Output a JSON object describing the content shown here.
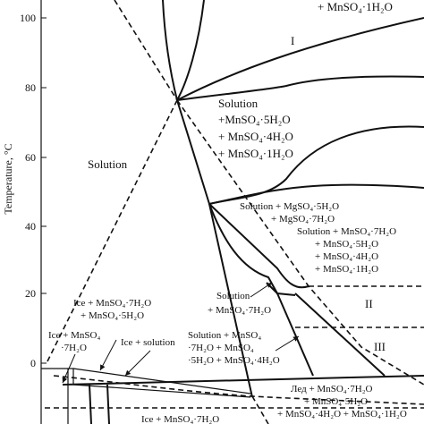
{
  "axis": {
    "ylabel": "Temperature, °C",
    "yticks": [
      "100",
      "80",
      "60",
      "40",
      "20",
      "0"
    ]
  },
  "labels": {
    "top_right": "+ MnSO₄·1H₂O",
    "region_I": "I",
    "solution_multi_1": "Solution",
    "solution_multi_2": "+MnSO₄·5H₂O",
    "solution_multi_3": "+ MnSO₄·4H₂O",
    "solution_multi_4": "+ MnSO₄·1H₂O",
    "solution_main": "Solution",
    "mg_1": "Solution + MgSO₄·5H₂O",
    "mg_2": "+ MgSO₄·7H₂O",
    "mn4_1": "Solution + MnSO₄·7H₂O",
    "mn4_2": "+ MnSO₄·5H₂O",
    "mn4_3": "+ MnSO₄·4H₂O",
    "mn4_4": "+ MnSO₄·1H₂O",
    "region_II": "II",
    "sol7_1": "Solution",
    "sol7_2": "+ MnSO₄·7H₂O",
    "ice_mn_1": "Ice + MnSO₄·7H₂O",
    "ice_mn_2": "+ MnSO₄·5H₂O",
    "sol_mn4_1": "Solution + MnSO₄",
    "sol_mn4_2": "·7H₂O + MnSO₄",
    "sol_mn4_3": "·5H₂O + MnSO₄·4H₂O",
    "region_III": "III",
    "ice_mnso4_1": "Ice + MnSO₄",
    "ice_mnso4_2": "·7H₂O",
    "ice_solution": "Ice + solution",
    "led_1": "Лед + MnSO₄·7H₂O",
    "led_2": "+ MnSO₄·5H₂O",
    "led_3": "+ MnSO₄·4H₂O + MnSO₄·1H₂O",
    "bottom": "Ice + MnSO₄·7H₂O"
  }
}
